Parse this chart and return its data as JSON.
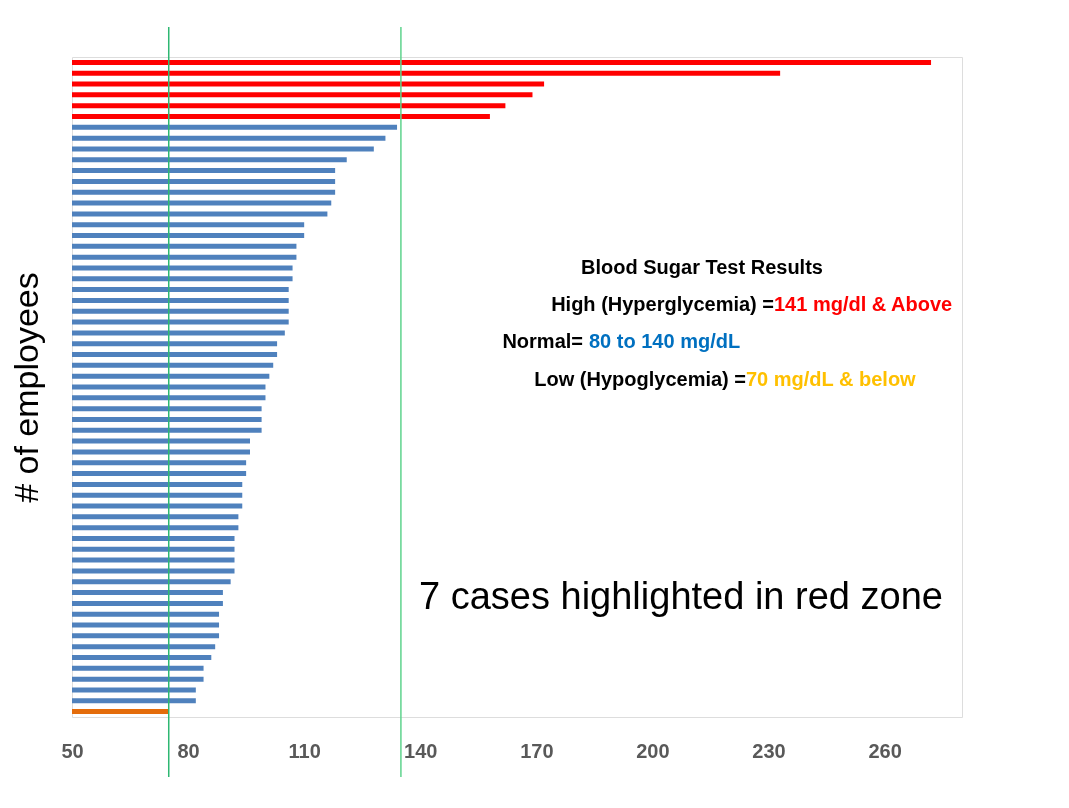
{
  "chart_data": {
    "type": "bar",
    "orientation": "horizontal",
    "ylabel": "# of employees",
    "categories": [
      null,
      null,
      null,
      null,
      null,
      null,
      null,
      null,
      null,
      null,
      null,
      null,
      null,
      null,
      null,
      null,
      null,
      null,
      null,
      null,
      null,
      null,
      null,
      null,
      null,
      null,
      null,
      null,
      null,
      null,
      null,
      null,
      null,
      null,
      null,
      null,
      null,
      null,
      null,
      null,
      null,
      null,
      null,
      null,
      null,
      null,
      null,
      null,
      null,
      null,
      null,
      null,
      null,
      null,
      null,
      null,
      null,
      null,
      null,
      null,
      null
    ],
    "values": [
      272,
      233,
      172,
      169,
      162,
      158,
      134,
      131,
      128,
      121,
      118,
      118,
      118,
      117,
      116,
      110,
      110,
      108,
      108,
      107,
      107,
      106,
      106,
      106,
      106,
      105,
      103,
      103,
      102,
      101,
      100,
      100,
      99,
      99,
      99,
      96,
      96,
      95,
      95,
      94,
      94,
      94,
      93,
      93,
      92,
      92,
      92,
      92,
      91,
      89,
      89,
      88,
      88,
      88,
      87,
      86,
      84,
      84,
      82,
      82,
      75
    ],
    "colors": [
      "#ff0000",
      "#ff0000",
      "#ff0000",
      "#ff0000",
      "#ff0000",
      "#ff0000",
      "#4f81bd",
      "#4f81bd",
      "#4f81bd",
      "#4f81bd",
      "#4f81bd",
      "#4f81bd",
      "#4f81bd",
      "#4f81bd",
      "#4f81bd",
      "#4f81bd",
      "#4f81bd",
      "#4f81bd",
      "#4f81bd",
      "#4f81bd",
      "#4f81bd",
      "#4f81bd",
      "#4f81bd",
      "#4f81bd",
      "#4f81bd",
      "#4f81bd",
      "#4f81bd",
      "#4f81bd",
      "#4f81bd",
      "#4f81bd",
      "#4f81bd",
      "#4f81bd",
      "#4f81bd",
      "#4f81bd",
      "#4f81bd",
      "#4f81bd",
      "#4f81bd",
      "#4f81bd",
      "#4f81bd",
      "#4f81bd",
      "#4f81bd",
      "#4f81bd",
      "#4f81bd",
      "#4f81bd",
      "#4f81bd",
      "#4f81bd",
      "#4f81bd",
      "#4f81bd",
      "#4f81bd",
      "#4f81bd",
      "#4f81bd",
      "#4f81bd",
      "#4f81bd",
      "#4f81bd",
      "#4f81bd",
      "#4f81bd",
      "#4f81bd",
      "#4f81bd",
      "#4f81bd",
      "#4f81bd",
      "#e46c0a"
    ],
    "xlim": [
      50,
      280
    ],
    "xticks": [
      50,
      80,
      110,
      140,
      170,
      200,
      230,
      260
    ],
    "ref_lines": [
      {
        "axis": "x",
        "value": 75,
        "color": "#2eb872"
      },
      {
        "axis": "x",
        "value": 135,
        "color": "#5fd38d"
      }
    ],
    "annotations": [
      "Blood Sugar Test Results",
      "High  (Hyperglycemia) =",
      "141 mg/dl & Above",
      "Normal=",
      "80 to 140 mg/dL",
      "Low (Hypoglycemia) =",
      "70 mg/dL & below",
      "7 cases highlighted in red zone"
    ],
    "tick_labels": "x",
    "grid": false
  }
}
